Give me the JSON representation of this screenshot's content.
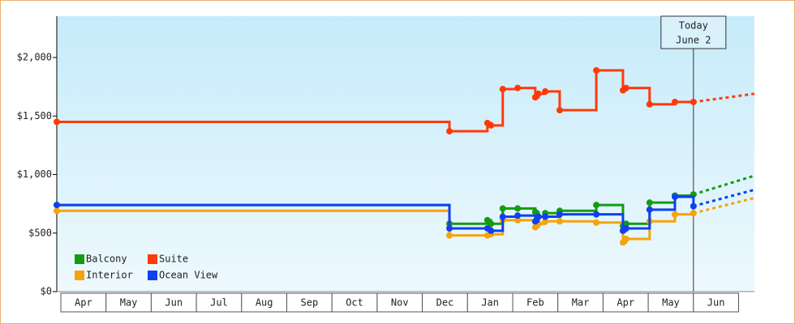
{
  "chart_data": {
    "type": "step-line",
    "x": [
      -0.09,
      8.6,
      9.44,
      9.52,
      9.78,
      10.11,
      10.5,
      10.57,
      10.72,
      11.04,
      11.85,
      12.44,
      12.51,
      13.03,
      13.59,
      14.0
    ],
    "forecast_x": [
      14.0,
      15.35
    ],
    "series": [
      {
        "name": "Balcony",
        "color": "#139c13",
        "values": [
          740,
          580,
          610,
          580,
          710,
          710,
          680,
          640,
          670,
          690,
          740,
          560,
          580,
          760,
          820,
          830
        ],
        "forecast": [
          830,
          990
        ]
      },
      {
        "name": "Suite",
        "color": "#ff3a0a",
        "values": [
          1450,
          1370,
          1440,
          1420,
          1730,
          1740,
          1660,
          1690,
          1710,
          1550,
          1890,
          1720,
          1740,
          1600,
          1620,
          1620
        ],
        "forecast": [
          1620,
          1690
        ]
      },
      {
        "name": "Interior",
        "color": "#f5a30a",
        "values": [
          690,
          480,
          480,
          490,
          610,
          610,
          550,
          580,
          600,
          600,
          590,
          420,
          450,
          600,
          660,
          670
        ],
        "forecast": [
          670,
          800
        ]
      },
      {
        "name": "Ocean View",
        "color": "#1040f0",
        "values": [
          740,
          540,
          540,
          520,
          640,
          650,
          600,
          640,
          640,
          660,
          660,
          520,
          540,
          700,
          810,
          730
        ],
        "forecast": [
          730,
          870
        ]
      }
    ],
    "xlim": [
      -0.09,
      15.35
    ],
    "xticks": [
      {
        "value": 0.5,
        "label": "Apr"
      },
      {
        "value": 1.5,
        "label": "May"
      },
      {
        "value": 2.5,
        "label": "Jun"
      },
      {
        "value": 3.5,
        "label": "Jul"
      },
      {
        "value": 4.5,
        "label": "Aug"
      },
      {
        "value": 5.5,
        "label": "Sep"
      },
      {
        "value": 6.5,
        "label": "Oct"
      },
      {
        "value": 7.5,
        "label": "Nov"
      },
      {
        "value": 8.5,
        "label": "Dec"
      },
      {
        "value": 9.5,
        "label": "Jan"
      },
      {
        "value": 10.5,
        "label": "Feb"
      },
      {
        "value": 11.5,
        "label": "Mar"
      },
      {
        "value": 12.5,
        "label": "Apr"
      },
      {
        "value": 13.5,
        "label": "May"
      },
      {
        "value": 14.5,
        "label": "Jun"
      }
    ],
    "ylim": [
      0,
      2353
    ],
    "yticks": [
      {
        "value": 0,
        "label": "$0"
      },
      {
        "value": 500,
        "label": "$500"
      },
      {
        "value": 1000,
        "label": "$1,000"
      },
      {
        "value": 1500,
        "label": "$1,500"
      },
      {
        "value": 2000,
        "label": "$2,000"
      }
    ],
    "today": {
      "x": 14.0,
      "label": [
        "Today",
        "June 2"
      ]
    }
  }
}
